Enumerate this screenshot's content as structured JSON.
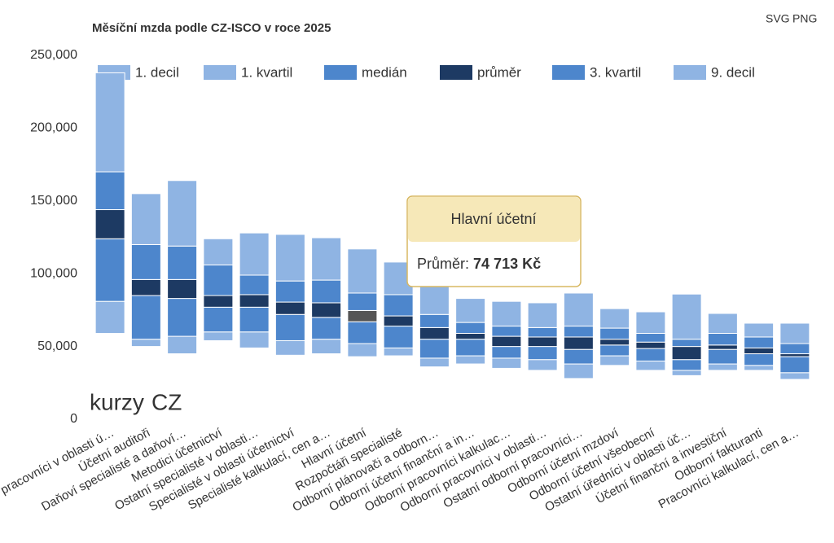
{
  "chart_data": {
    "type": "range-column",
    "title": "Měsíční mzda podle CZ-ISCO v roce 2025",
    "export_buttons": [
      "SVG",
      "PNG"
    ],
    "logo": [
      "kurzy",
      "CZ"
    ],
    "categories": [
      "Řídící pracovníci v oblasti ú…",
      "Účetní auditoři",
      "Daňoví specialisté a daňoví…",
      "Metodici účetnictví",
      "Ostatní specialisté v oblasti…",
      "Specialisté v oblasti účetnictví",
      "Specialisté kalkulací, cen a…",
      "Hlavní účetní",
      "Rozpočtáři specialisté",
      "Odborní plánovači a odborn…",
      "Odborní účetní finanční a in…",
      "Odborní pracovníci kalkulac…",
      "Odborní pracovníci v oblasti…",
      "Ostatní odborní pracovníci…",
      "Odborní účetní mzdoví",
      "Odborní účetní všeobecní",
      "Ostatní úředníci v oblasti úč…",
      "Účetní finanční a investiční",
      "Odborní fakturanti",
      "Pracovníci kalkulací, cen a…"
    ],
    "series": [
      {
        "name": "1. decil",
        "color": "#8fb4e3",
        "values": [
          59000,
          50000,
          45000,
          54000,
          49000,
          44000,
          45000,
          43000,
          43600,
          36000,
          38000,
          35000,
          33600,
          28000,
          37000,
          33600,
          30000,
          33600,
          33600,
          27400
        ]
      },
      {
        "name": "1. kvartil",
        "color": "#8fb4e3",
        "values": [
          81000,
          55000,
          57000,
          60000,
          60000,
          54000,
          55000,
          52000,
          49000,
          42000,
          43600,
          42000,
          41000,
          38000,
          43600,
          40000,
          33600,
          38000,
          37000,
          32000
        ]
      },
      {
        "name": "medián",
        "color": "#4d86cc",
        "values": [
          124000,
          85000,
          83000,
          77000,
          77000,
          72000,
          70000,
          67000,
          64000,
          55000,
          55000,
          50000,
          50000,
          48000,
          51000,
          48600,
          41000,
          48000,
          45000,
          43000
        ]
      },
      {
        "name": "průměr",
        "color": "#1d3a63",
        "values": [
          144000,
          96000,
          96000,
          85000,
          85600,
          80500,
          80000,
          74713,
          71000,
          63000,
          59000,
          57000,
          56500,
          56500,
          55000,
          53000,
          50000,
          51000,
          49000,
          45000
        ]
      },
      {
        "name": "3. kvartil",
        "color": "#4d86cc",
        "values": [
          170000,
          120000,
          119000,
          106000,
          99000,
          95000,
          95600,
          86700,
          85600,
          72000,
          66500,
          64000,
          63000,
          64000,
          62600,
          59000,
          55000,
          59000,
          56500,
          52000
        ]
      },
      {
        "name": "9. decil",
        "color": "#8fb4e3",
        "values": [
          238000,
          155000,
          164000,
          124000,
          128000,
          127000,
          124700,
          117000,
          108000,
          103000,
          83000,
          81000,
          80000,
          86700,
          76000,
          73800,
          86000,
          72700,
          66000,
          66000
        ]
      }
    ],
    "ylim": [
      0,
      250000
    ],
    "yticks": [
      0,
      {
        "value": 50000,
        "label": "50,000"
      },
      {
        "value": 100000,
        "label": "100,000"
      },
      {
        "value": 150000,
        "label": "150,000"
      },
      {
        "value": 200000,
        "label": "200,000"
      },
      {
        "value": 250000,
        "label": "250,000"
      }
    ],
    "tooltip": {
      "category": 7,
      "label": "Průměr:",
      "value_label": "74 713 Kč"
    }
  }
}
